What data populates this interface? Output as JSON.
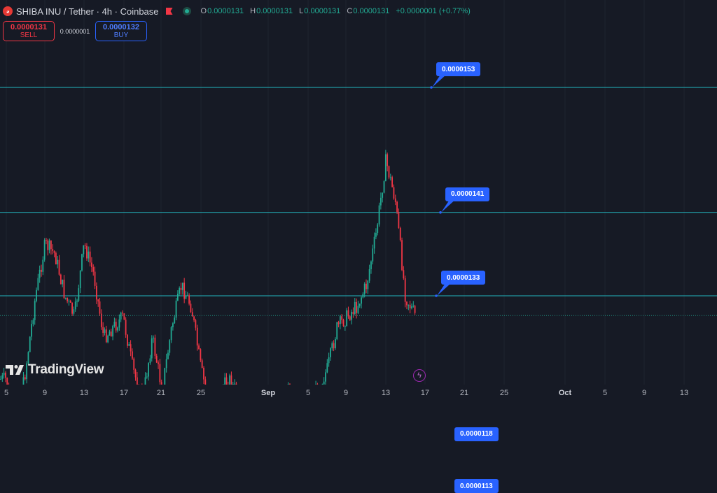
{
  "header": {
    "title": "SHIBA INU / Tether · 4h · Coinbase",
    "ohlc": [
      {
        "k": "O",
        "v": "0.0000131"
      },
      {
        "k": "H",
        "v": "0.0000131"
      },
      {
        "k": "L",
        "v": "0.0000131"
      },
      {
        "k": "C",
        "v": "0.0000131"
      }
    ],
    "change": "+0.0000001 (+0.77%)"
  },
  "trade": {
    "sell_price": "0.0000131",
    "sell_label": "SELL",
    "spread": "0.0000001",
    "buy_price": "0.0000132",
    "buy_label": "BUY"
  },
  "branding": {
    "logo_text": "TradingView"
  },
  "colors": {
    "background": "#161a25",
    "up": "#22ab94",
    "down": "#f23645",
    "hline": "#22b5bf",
    "label": "#2962ff",
    "grid": "#1f2430"
  },
  "icons": {
    "symbol": "shiba-inu-icon",
    "flag": "flag-icon",
    "live": "live-status-icon",
    "replay": "lightning-icon"
  },
  "chart_data": {
    "type": "candlestick",
    "symbol": "SHIBUSDT",
    "interval": "4h",
    "xlim": [
      "2024-08-05",
      "2024-10-13"
    ],
    "ylim": [
      9.8e-07,
      1.67e-06
    ],
    "x_ticks": [
      "5",
      "9",
      "13",
      "17",
      "21",
      "25",
      "Sep",
      "5",
      "9",
      "13",
      "17",
      "21",
      "25",
      "Oct",
      "5",
      "9",
      "13"
    ],
    "horizontal_lines": [
      {
        "price": 1.53e-05,
        "label": "0.0000153"
      },
      {
        "price": 1.41e-05,
        "label": "0.0000141"
      },
      {
        "price": 1.33e-05,
        "label": "0.0000133"
      },
      {
        "price": 1.18e-05,
        "label": "0.0000118"
      },
      {
        "price": 1.13e-05,
        "label": "0.0000113"
      }
    ],
    "last_price": 1.311e-05,
    "close_path": [
      [
        "2024-08-05",
        1.25e-05
      ],
      [
        "2024-08-06",
        1.2e-05
      ],
      [
        "2024-08-07",
        1.26e-05
      ],
      [
        "2024-08-08",
        1.33e-05
      ],
      [
        "2024-08-09",
        1.38e-05
      ],
      [
        "2024-08-10",
        1.37e-05
      ],
      [
        "2024-08-11",
        1.33e-05
      ],
      [
        "2024-08-12",
        1.31e-05
      ],
      [
        "2024-08-13",
        1.38e-05
      ],
      [
        "2024-08-14",
        1.35e-05
      ],
      [
        "2024-08-15",
        1.29e-05
      ],
      [
        "2024-08-16",
        1.3e-05
      ],
      [
        "2024-08-17",
        1.31e-05
      ],
      [
        "2024-08-18",
        1.26e-05
      ],
      [
        "2024-08-19",
        1.23e-05
      ],
      [
        "2024-08-20",
        1.29e-05
      ],
      [
        "2024-08-21",
        1.24e-05
      ],
      [
        "2024-08-22",
        1.3e-05
      ],
      [
        "2024-08-23",
        1.34e-05
      ],
      [
        "2024-08-24",
        1.32e-05
      ],
      [
        "2024-08-25",
        1.26e-05
      ],
      [
        "2024-08-26",
        1.22e-05
      ],
      [
        "2024-08-27",
        1.24e-05
      ],
      [
        "2024-08-28",
        1.25e-05
      ],
      [
        "2024-08-29",
        1.23e-05
      ],
      [
        "2024-08-30",
        1.22e-05
      ],
      [
        "2024-08-31",
        1.23e-05
      ],
      [
        "2024-09-01",
        1.225e-05
      ],
      [
        "2024-09-02",
        1.24e-05
      ],
      [
        "2024-09-03",
        1.24e-05
      ],
      [
        "2024-09-04",
        1.23e-05
      ],
      [
        "2024-09-05",
        1.235e-05
      ],
      [
        "2024-09-06",
        1.24e-05
      ],
      [
        "2024-09-07",
        1.26e-05
      ],
      [
        "2024-09-08",
        1.3e-05
      ],
      [
        "2024-09-09",
        1.31e-05
      ],
      [
        "2024-09-10",
        1.32e-05
      ],
      [
        "2024-09-11",
        1.34e-05
      ],
      [
        "2024-09-12",
        1.39e-05
      ],
      [
        "2024-09-13",
        1.46e-05
      ],
      [
        "2024-09-14",
        1.42e-05
      ],
      [
        "2024-09-15",
        1.33e-05
      ],
      [
        "2024-09-16",
        1.311e-05
      ]
    ]
  }
}
